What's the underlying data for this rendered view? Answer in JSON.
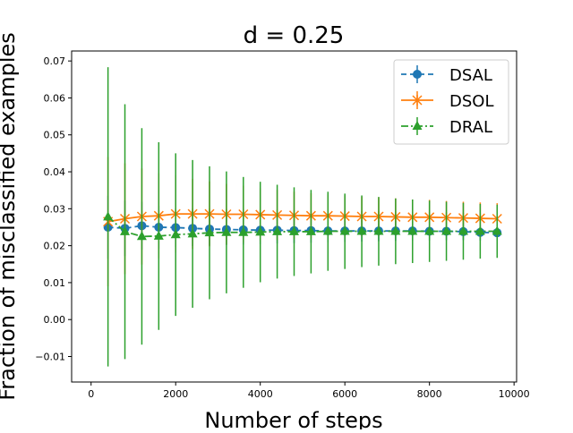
{
  "chart_data": {
    "type": "line",
    "title": "d = 0.25",
    "xlabel": "Number of steps",
    "ylabel": "Fraction of misclassified examples",
    "xlim": [
      -460,
      10060
    ],
    "ylim": [
      -0.0169,
      0.0727
    ],
    "xticks": [
      0,
      2000,
      4000,
      6000,
      8000,
      10000
    ],
    "xtick_labels": [
      "0",
      "2000",
      "4000",
      "6000",
      "8000",
      "10000"
    ],
    "yticks": [
      -0.01,
      0.0,
      0.01,
      0.02,
      0.03,
      0.04,
      0.05,
      0.06,
      0.07
    ],
    "ytick_labels": [
      "−0.01",
      "0.00",
      "0.01",
      "0.02",
      "0.03",
      "0.04",
      "0.05",
      "0.06",
      "0.07"
    ],
    "legend_position": "top-right",
    "x": [
      400,
      800,
      1200,
      1600,
      2000,
      2400,
      2800,
      3200,
      3600,
      4000,
      4400,
      4800,
      5200,
      5600,
      6000,
      6400,
      6800,
      7200,
      7600,
      8000,
      8400,
      8800,
      9200,
      9600
    ],
    "series": [
      {
        "name": "DSAL",
        "color": "#1f77b4",
        "marker": "circle",
        "dash": "6,4",
        "values": [
          0.025,
          0.0247,
          0.0254,
          0.025,
          0.0249,
          0.0247,
          0.0245,
          0.0244,
          0.0243,
          0.0242,
          0.0242,
          0.0241,
          0.0241,
          0.024,
          0.024,
          0.024,
          0.024,
          0.024,
          0.024,
          0.0239,
          0.0239,
          0.0238,
          0.0236,
          0.0235
        ],
        "errors": [
          0.0085,
          0.0075,
          0.0065,
          0.0058,
          0.0052,
          0.0048,
          0.0045,
          0.0042,
          0.004,
          0.0038,
          0.0036,
          0.0034,
          0.0033,
          0.0031,
          0.003,
          0.0029,
          0.0028,
          0.0027,
          0.0026,
          0.0025,
          0.0024,
          0.0023,
          0.0022,
          0.0021
        ]
      },
      {
        "name": "DSOL",
        "color": "#ff7f0e",
        "marker": "x",
        "dash": "",
        "values": [
          0.0265,
          0.0273,
          0.0279,
          0.0281,
          0.0286,
          0.0286,
          0.0286,
          0.0285,
          0.0285,
          0.0284,
          0.0283,
          0.0282,
          0.0281,
          0.0281,
          0.028,
          0.0279,
          0.0279,
          0.0278,
          0.0277,
          0.0277,
          0.0276,
          0.0275,
          0.0274,
          0.0273
        ],
        "errors": [
          0.0175,
          0.015,
          0.013,
          0.0115,
          0.0105,
          0.0095,
          0.0088,
          0.0082,
          0.0077,
          0.0072,
          0.0068,
          0.0064,
          0.0061,
          0.0058,
          0.0056,
          0.0054,
          0.0052,
          0.005,
          0.0048,
          0.0047,
          0.0045,
          0.0044,
          0.0043,
          0.0042
        ]
      },
      {
        "name": "DRAL",
        "color": "#2ca02c",
        "marker": "triangle",
        "dash": "8,3,2,3",
        "values": [
          0.0278,
          0.0238,
          0.0225,
          0.0226,
          0.023,
          0.0232,
          0.0235,
          0.0236,
          0.0236,
          0.0237,
          0.0238,
          0.0238,
          0.0238,
          0.0239,
          0.0239,
          0.0239,
          0.0239,
          0.0239,
          0.0239,
          0.0239,
          0.0239,
          0.0239,
          0.0239,
          0.0239
        ],
        "errors": [
          0.0405,
          0.0345,
          0.0293,
          0.0254,
          0.022,
          0.02,
          0.018,
          0.0165,
          0.015,
          0.0136,
          0.0127,
          0.012,
          0.0113,
          0.0107,
          0.0102,
          0.0097,
          0.0093,
          0.0089,
          0.0086,
          0.0083,
          0.008,
          0.0077,
          0.0074,
          0.0072
        ]
      }
    ]
  }
}
